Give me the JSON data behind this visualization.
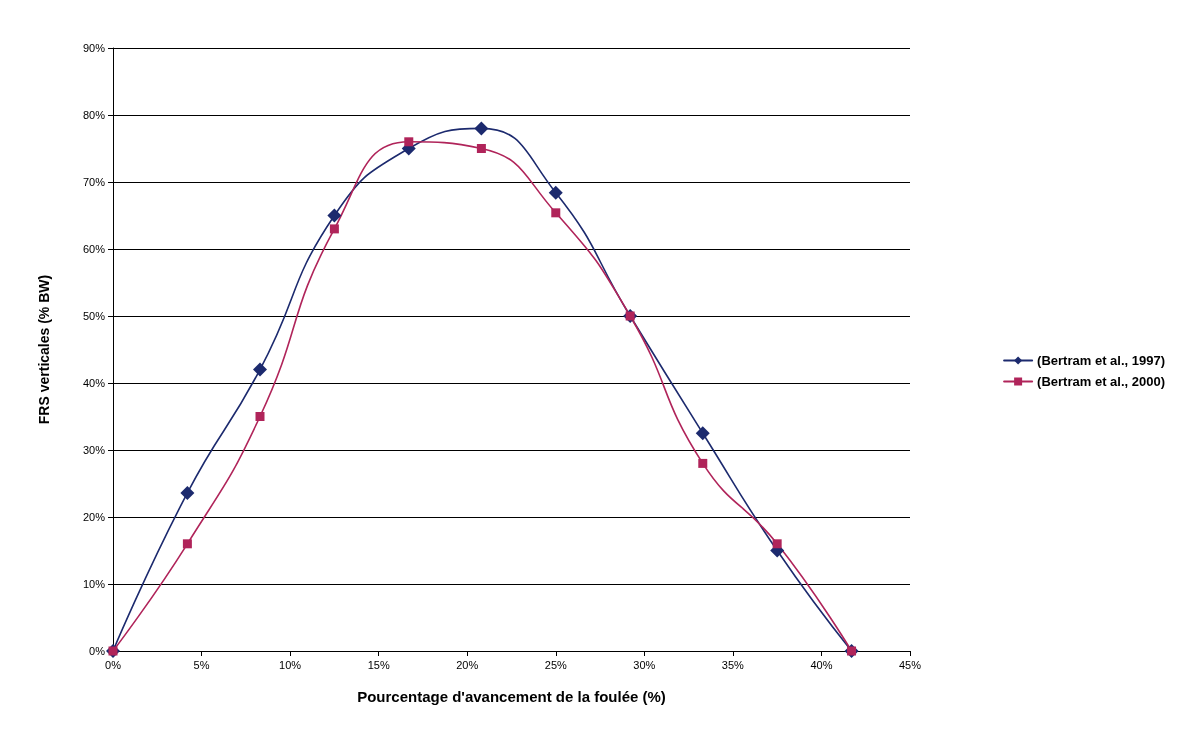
{
  "chart_data": {
    "type": "line",
    "xlabel": "Pourcentage d'avancement de la foulée (%)",
    "ylabel": "FRS verticales (% BW)",
    "series": [
      {
        "name": "(Bertram et al., 1997)",
        "color": "#1c2a6e",
        "marker": "diamond",
        "x": [
          0,
          4.2,
          8.3,
          12.5,
          16.7,
          20.8,
          25,
          29.2,
          33.3,
          37.5,
          41.7
        ],
        "values": [
          0,
          23.6,
          42,
          65,
          75,
          78,
          68.4,
          50,
          32.5,
          15,
          0
        ]
      },
      {
        "name": "(Bertram et al., 2000)",
        "color": "#b0245a",
        "marker": "square",
        "x": [
          0,
          4.2,
          8.3,
          12.5,
          16.7,
          20.8,
          25,
          29.2,
          33.3,
          37.5,
          41.7
        ],
        "values": [
          0,
          16,
          35,
          63,
          76,
          75,
          65.4,
          50,
          28,
          16,
          0
        ]
      }
    ],
    "xlim": [
      0,
      45
    ],
    "xticks": [
      {
        "value": 0,
        "label": "0%"
      },
      {
        "value": 5,
        "label": "5%"
      },
      {
        "value": 10,
        "label": "10%"
      },
      {
        "value": 15,
        "label": "15%"
      },
      {
        "value": 20,
        "label": "20%"
      },
      {
        "value": 25,
        "label": "25%"
      },
      {
        "value": 30,
        "label": "30%"
      },
      {
        "value": 35,
        "label": "35%"
      },
      {
        "value": 40,
        "label": "40%"
      },
      {
        "value": 45,
        "label": "45%"
      }
    ],
    "ylim": [
      0,
      90
    ],
    "yticks": [
      {
        "value": 0,
        "label": "0%"
      },
      {
        "value": 10,
        "label": "10%"
      },
      {
        "value": 20,
        "label": "20%"
      },
      {
        "value": 30,
        "label": "30%"
      },
      {
        "value": 40,
        "label": "40%"
      },
      {
        "value": 50,
        "label": "50%"
      },
      {
        "value": 60,
        "label": "60%"
      },
      {
        "value": 70,
        "label": "70%"
      },
      {
        "value": 80,
        "label": "80%"
      },
      {
        "value": 90,
        "label": "90%"
      }
    ],
    "grid": "y",
    "legend": "right",
    "line_style": "solid"
  }
}
